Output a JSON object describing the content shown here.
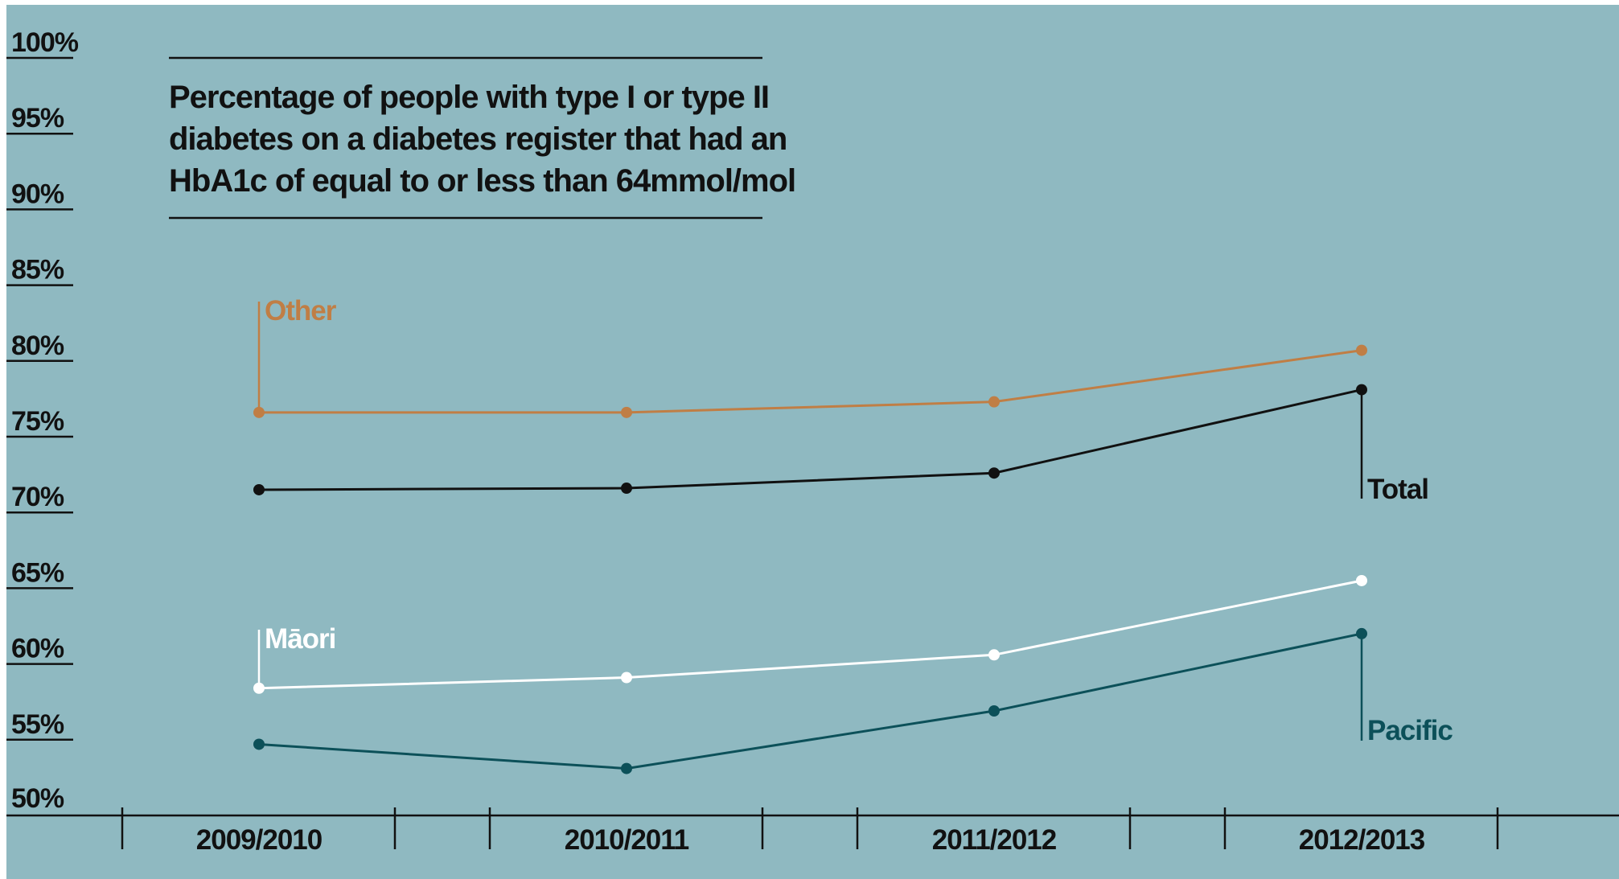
{
  "colors": {
    "background": "#8fb9c1",
    "axis": "#111111",
    "other": "#c07e45",
    "total": "#111111",
    "maori": "#ffffff",
    "pacific": "#0c5059"
  },
  "chart_data": {
    "type": "line",
    "title_lines": [
      "Percentage of people with type I or type II",
      "diabetes on a diabetes register that had an",
      "HbA1c of equal to or less than 64mmol/mol"
    ],
    "categories": [
      "2009/2010",
      "2010/2011",
      "2011/2012",
      "2012/2013"
    ],
    "ylim": [
      50,
      100
    ],
    "yticks": [
      {
        "value": 100,
        "label": "100%"
      },
      {
        "value": 95,
        "label": "95%"
      },
      {
        "value": 90,
        "label": "90%"
      },
      {
        "value": 85,
        "label": "85%"
      },
      {
        "value": 80,
        "label": "80%"
      },
      {
        "value": 75,
        "label": "75%"
      },
      {
        "value": 70,
        "label": "70%"
      },
      {
        "value": 65,
        "label": "65%"
      },
      {
        "value": 60,
        "label": "60%"
      },
      {
        "value": 55,
        "label": "55%"
      },
      {
        "value": 50,
        "label": "50%"
      }
    ],
    "series": [
      {
        "key": "other",
        "name": "Other",
        "color": "#c07e45",
        "values": [
          76.6,
          76.6,
          77.3,
          80.7
        ]
      },
      {
        "key": "total",
        "name": "Total",
        "color": "#111111",
        "values": [
          71.5,
          71.6,
          72.6,
          78.1
        ]
      },
      {
        "key": "maori",
        "name": "Māori",
        "color": "#ffffff",
        "values": [
          58.4,
          59.1,
          60.6,
          65.5
        ]
      },
      {
        "key": "pacific",
        "name": "Pacific",
        "color": "#0c5059",
        "values": [
          54.7,
          53.1,
          56.9,
          62.0
        ]
      }
    ]
  }
}
